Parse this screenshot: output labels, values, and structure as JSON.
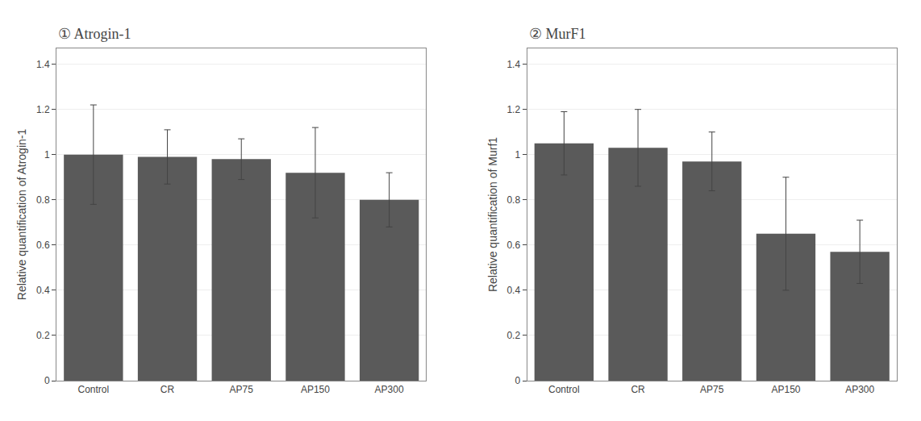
{
  "chart_data": [
    {
      "type": "bar",
      "title": "① Atrogin-1",
      "ylabel": "Relative quantification of Atrogin-1",
      "categories": [
        "Control",
        "CR",
        "AP75",
        "AP150",
        "AP300"
      ],
      "values": [
        1.0,
        0.99,
        0.98,
        0.92,
        0.8
      ],
      "errors": [
        0.22,
        0.12,
        0.09,
        0.2,
        0.12
      ],
      "color": "#5a5a5a",
      "ylim": [
        0,
        1.47
      ],
      "yticks": [
        0,
        0.2,
        0.4,
        0.6,
        0.8,
        1,
        1.2,
        1.4
      ],
      "grid": true
    },
    {
      "type": "bar",
      "title": "② MurF1",
      "ylabel": "Relative quantification of Murf1",
      "categories": [
        "Control",
        "CR",
        "AP75",
        "AP150",
        "AP300"
      ],
      "values": [
        1.05,
        1.03,
        0.97,
        0.65,
        0.57
      ],
      "errors": [
        0.14,
        0.17,
        0.13,
        0.25,
        0.14
      ],
      "color": "#5a5a5a",
      "ylim": [
        0,
        1.47
      ],
      "yticks": [
        0,
        0.2,
        0.4,
        0.6,
        0.8,
        1,
        1.2,
        1.4
      ],
      "grid": true
    }
  ]
}
